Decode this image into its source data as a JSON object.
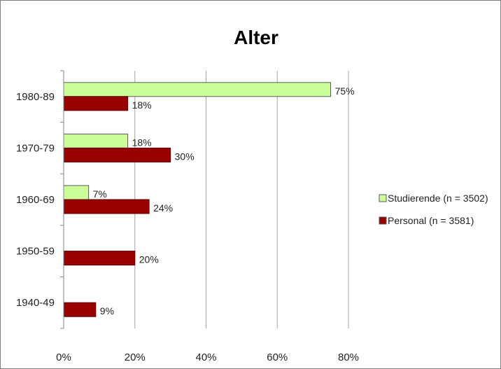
{
  "chart_data": {
    "type": "bar",
    "orientation": "horizontal",
    "title": "Alter",
    "xlabel": "",
    "ylabel": "",
    "categories": [
      "1980-89",
      "1970-79",
      "1960-69",
      "1950-59",
      "1940-49"
    ],
    "series": [
      {
        "name": "Studierende (n = 3502)",
        "color": "#ccff99",
        "values": [
          75,
          18,
          7,
          0,
          0
        ],
        "labels": [
          "75%",
          "18%",
          "7%",
          "",
          ""
        ]
      },
      {
        "name": "Personal (n = 3581)",
        "color": "#990000",
        "values": [
          18,
          30,
          24,
          20,
          9
        ],
        "labels": [
          "18%",
          "30%",
          "24%",
          "20%",
          "9%"
        ]
      }
    ],
    "xlim": [
      0,
      80
    ],
    "x_ticks": [
      "0%",
      "20%",
      "40%",
      "60%",
      "80%"
    ],
    "x_tick_values": [
      0,
      20,
      40,
      60,
      80
    ],
    "grid": "vertical",
    "legend_position": "right"
  }
}
